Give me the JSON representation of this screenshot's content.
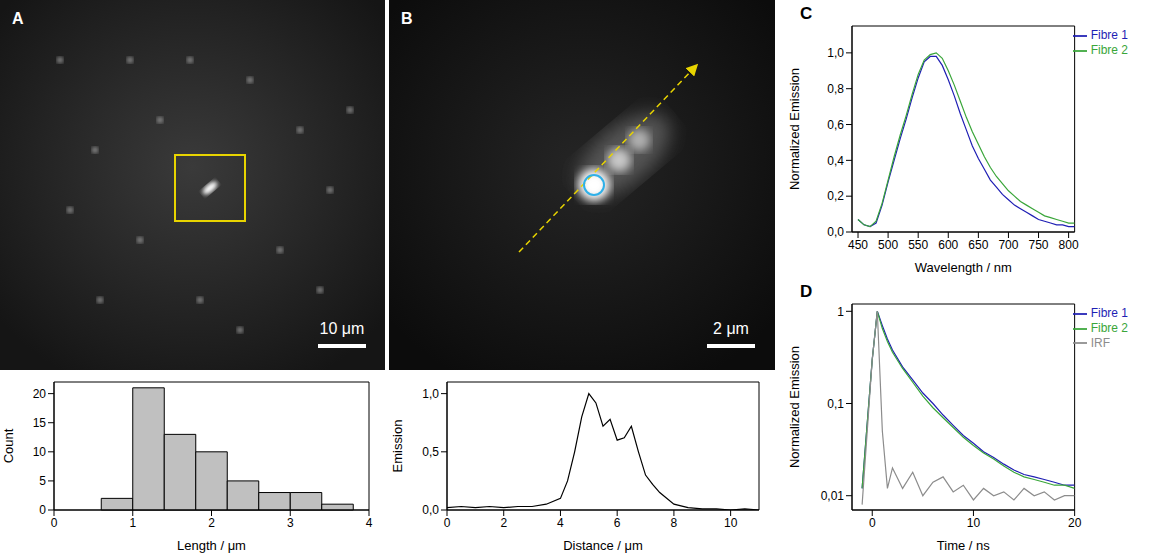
{
  "images": [
    {
      "panel": "A",
      "scale_bar": "10 μm"
    },
    {
      "panel": "B",
      "scale_bar": "2 μm"
    }
  ],
  "chart_data": [
    {
      "type": "histogram",
      "x_label": "Length / μm",
      "y_label": "Count",
      "bins": [
        0.6,
        1.0,
        1.4,
        1.8,
        2.2,
        2.6,
        3.0,
        3.4,
        3.8
      ],
      "values": [
        2,
        21,
        13,
        10,
        5,
        3,
        3,
        1
      ],
      "color": "#c0c0c0",
      "xlim": [
        0,
        4
      ],
      "xticks": [
        0,
        1,
        2,
        3,
        4
      ],
      "ylim": [
        0,
        22
      ],
      "yticks": [
        0,
        5,
        10,
        15,
        20
      ],
      "grid": false
    },
    {
      "type": "line",
      "x_label": "Distance / μm",
      "y_label": "Emission",
      "x": [
        0,
        0.5,
        1,
        1.5,
        2,
        2.5,
        3,
        3.5,
        4,
        4.25,
        4.5,
        4.75,
        5,
        5.25,
        5.5,
        5.75,
        6,
        6.25,
        6.5,
        6.75,
        7,
        7.25,
        7.5,
        8,
        8.5,
        9,
        9.5,
        10,
        10.5,
        11
      ],
      "values": [
        0.02,
        0.03,
        0.02,
        0.03,
        0.02,
        0.03,
        0.03,
        0.05,
        0.1,
        0.25,
        0.5,
        0.8,
        1.0,
        0.92,
        0.72,
        0.78,
        0.6,
        0.62,
        0.72,
        0.5,
        0.3,
        0.22,
        0.15,
        0.05,
        0.02,
        0.01,
        0.01,
        0.0,
        0.01,
        0.0
      ],
      "color": "#000000",
      "xlim": [
        0,
        11
      ],
      "xticks": [
        0,
        2,
        4,
        6,
        8,
        10
      ],
      "ylim": [
        0,
        1.1
      ],
      "yticks": [
        {
          "value": 0,
          "label": "0,0"
        },
        {
          "value": 0.5,
          "label": "0,5"
        },
        {
          "value": 1,
          "label": "1,0"
        }
      ],
      "grid": false
    },
    {
      "type": "line",
      "panel": "C",
      "x_label": "Wavelength / nm",
      "y_label": "Normalized Emission",
      "x": [
        450,
        460,
        470,
        480,
        490,
        500,
        510,
        520,
        530,
        540,
        550,
        560,
        570,
        580,
        590,
        600,
        610,
        620,
        630,
        640,
        650,
        660,
        670,
        680,
        690,
        700,
        710,
        720,
        730,
        740,
        750,
        760,
        770,
        780,
        790,
        800,
        810
      ],
      "series": [
        {
          "name": "Fibre 1",
          "color": "#1f1fb4",
          "values": [
            0.07,
            0.04,
            0.03,
            0.05,
            0.15,
            0.28,
            0.4,
            0.52,
            0.63,
            0.75,
            0.86,
            0.95,
            0.98,
            0.98,
            0.93,
            0.85,
            0.76,
            0.66,
            0.57,
            0.48,
            0.41,
            0.35,
            0.29,
            0.25,
            0.21,
            0.18,
            0.15,
            0.13,
            0.11,
            0.09,
            0.07,
            0.06,
            0.05,
            0.04,
            0.04,
            0.03,
            0.03
          ]
        },
        {
          "name": "Fibre 2",
          "color": "#3aa63a",
          "values": [
            0.07,
            0.04,
            0.03,
            0.06,
            0.16,
            0.29,
            0.42,
            0.54,
            0.65,
            0.77,
            0.88,
            0.96,
            0.99,
            1.0,
            0.97,
            0.9,
            0.82,
            0.73,
            0.64,
            0.56,
            0.49,
            0.42,
            0.36,
            0.31,
            0.27,
            0.23,
            0.2,
            0.17,
            0.15,
            0.13,
            0.11,
            0.09,
            0.08,
            0.07,
            0.06,
            0.05,
            0.05
          ]
        }
      ],
      "xlim": [
        440,
        810
      ],
      "xticks": [
        450,
        500,
        550,
        600,
        650,
        700,
        750,
        800
      ],
      "ylim": [
        0,
        1.15
      ],
      "yticks": [
        {
          "value": 0,
          "label": "0,0"
        },
        {
          "value": 0.2,
          "label": "0,2"
        },
        {
          "value": 0.4,
          "label": "0,4"
        },
        {
          "value": 0.6,
          "label": "0,6"
        },
        {
          "value": 0.8,
          "label": "0,8"
        },
        {
          "value": 1,
          "label": "1,0"
        }
      ],
      "legend": "upper right",
      "grid": false
    },
    {
      "type": "line",
      "panel": "D",
      "x_label": "Time / ns",
      "y_label": "Normalized Emission",
      "log": "y",
      "x": [
        -1,
        0,
        0.5,
        1,
        1.5,
        2,
        3,
        4,
        5,
        6,
        7,
        8,
        9,
        10,
        11,
        12,
        13,
        14,
        15,
        16,
        17,
        18,
        19,
        20
      ],
      "series": [
        {
          "name": "Fibre 1",
          "color": "#1f1fb4",
          "values": [
            0.012,
            0.3,
            1.0,
            0.7,
            0.5,
            0.38,
            0.25,
            0.18,
            0.13,
            0.1,
            0.075,
            0.058,
            0.045,
            0.037,
            0.03,
            0.026,
            0.022,
            0.019,
            0.017,
            0.016,
            0.015,
            0.014,
            0.013,
            0.013
          ]
        },
        {
          "name": "Fibre 2",
          "color": "#3aa63a",
          "values": [
            0.012,
            0.3,
            1.0,
            0.65,
            0.47,
            0.36,
            0.24,
            0.17,
            0.12,
            0.09,
            0.07,
            0.055,
            0.043,
            0.035,
            0.029,
            0.025,
            0.021,
            0.018,
            0.016,
            0.015,
            0.014,
            0.013,
            0.013,
            0.012
          ]
        },
        {
          "name": "IRF",
          "color": "#8c8c8c",
          "values": [
            0.008,
            0.3,
            1.0,
            0.05,
            0.012,
            0.02,
            0.012,
            0.018,
            0.01,
            0.014,
            0.016,
            0.011,
            0.013,
            0.009,
            0.012,
            0.01,
            0.011,
            0.009,
            0.012,
            0.01,
            0.011,
            0.009,
            0.01,
            0.01
          ]
        }
      ],
      "xlim": [
        -2,
        20
      ],
      "xticks": [
        0,
        10,
        20
      ],
      "ylim": [
        0.007,
        1.2
      ],
      "yticks": [
        {
          "value": 0.01,
          "label": "0,01"
        },
        {
          "value": 0.1,
          "label": "0,1"
        },
        1
      ],
      "legend": "upper right",
      "grid": false
    }
  ]
}
